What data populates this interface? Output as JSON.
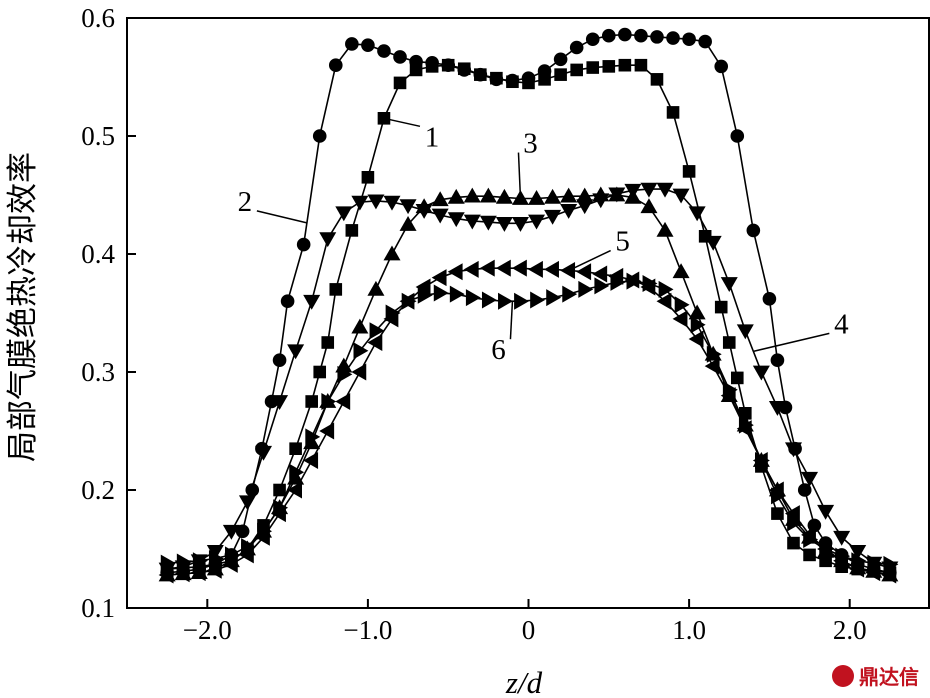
{
  "chart_data": {
    "type": "line",
    "xlabel": "z/d",
    "ylabel": "局部气膜绝热冷却效率",
    "xlim": [
      -2.5,
      2.5
    ],
    "ylim": [
      0.1,
      0.6
    ],
    "xticks": [
      -2.0,
      -1.0,
      0,
      1.0,
      2.0
    ],
    "xtick_labels": [
      "−2.0",
      "−1.0",
      "0",
      "1.0",
      "2.0"
    ],
    "yticks": [
      0.1,
      0.2,
      0.3,
      0.4,
      0.5,
      0.6
    ],
    "ytick_labels": [
      "0.1",
      "0.2",
      "0.3",
      "0.4",
      "0.5",
      "0.6"
    ],
    "grid": false,
    "series": [
      {
        "name": "1",
        "marker": "square",
        "x": [
          -2.25,
          -2.15,
          -2.05,
          -1.95,
          -1.85,
          -1.75,
          -1.65,
          -1.55,
          -1.45,
          -1.35,
          -1.3,
          -1.25,
          -1.2,
          -1.1,
          -1.0,
          -0.9,
          -0.8,
          -0.7,
          -0.6,
          -0.5,
          -0.4,
          -0.3,
          -0.2,
          -0.1,
          0.0,
          0.1,
          0.2,
          0.3,
          0.4,
          0.5,
          0.6,
          0.7,
          0.8,
          0.9,
          1.0,
          1.1,
          1.2,
          1.25,
          1.3,
          1.35,
          1.45,
          1.55,
          1.65,
          1.75,
          1.85,
          1.95,
          2.05,
          2.15,
          2.25
        ],
        "y": [
          0.133,
          0.134,
          0.135,
          0.137,
          0.14,
          0.15,
          0.17,
          0.2,
          0.235,
          0.275,
          0.3,
          0.325,
          0.37,
          0.42,
          0.465,
          0.515,
          0.545,
          0.556,
          0.559,
          0.56,
          0.557,
          0.552,
          0.549,
          0.546,
          0.545,
          0.548,
          0.552,
          0.556,
          0.558,
          0.559,
          0.56,
          0.56,
          0.548,
          0.52,
          0.47,
          0.415,
          0.355,
          0.325,
          0.295,
          0.265,
          0.22,
          0.18,
          0.155,
          0.145,
          0.14,
          0.135,
          0.133,
          0.132,
          0.13
        ]
      },
      {
        "name": "2",
        "marker": "circle",
        "x": [
          -2.25,
          -2.15,
          -2.05,
          -1.95,
          -1.85,
          -1.78,
          -1.72,
          -1.66,
          -1.6,
          -1.55,
          -1.5,
          -1.4,
          -1.3,
          -1.2,
          -1.1,
          -1.0,
          -0.9,
          -0.8,
          -0.7,
          -0.6,
          -0.5,
          -0.4,
          -0.3,
          -0.2,
          -0.1,
          0.0,
          0.1,
          0.2,
          0.3,
          0.4,
          0.5,
          0.6,
          0.7,
          0.8,
          0.9,
          1.0,
          1.1,
          1.2,
          1.3,
          1.4,
          1.5,
          1.55,
          1.6,
          1.66,
          1.72,
          1.78,
          1.85,
          1.95,
          2.05,
          2.15,
          2.25
        ],
        "y": [
          0.13,
          0.131,
          0.133,
          0.137,
          0.145,
          0.165,
          0.2,
          0.235,
          0.275,
          0.31,
          0.36,
          0.408,
          0.5,
          0.56,
          0.578,
          0.577,
          0.572,
          0.567,
          0.563,
          0.562,
          0.56,
          0.556,
          0.552,
          0.548,
          0.547,
          0.549,
          0.555,
          0.565,
          0.575,
          0.582,
          0.585,
          0.586,
          0.585,
          0.584,
          0.583,
          0.582,
          0.58,
          0.559,
          0.5,
          0.42,
          0.362,
          0.31,
          0.27,
          0.235,
          0.2,
          0.17,
          0.155,
          0.145,
          0.137,
          0.133,
          0.13
        ]
      },
      {
        "name": "3",
        "marker": "triangle-up",
        "x": [
          -2.25,
          -2.15,
          -2.05,
          -1.95,
          -1.85,
          -1.75,
          -1.65,
          -1.55,
          -1.45,
          -1.35,
          -1.25,
          -1.15,
          -1.05,
          -0.95,
          -0.85,
          -0.75,
          -0.65,
          -0.55,
          -0.45,
          -0.35,
          -0.25,
          -0.15,
          -0.05,
          0.05,
          0.15,
          0.25,
          0.35,
          0.45,
          0.55,
          0.65,
          0.75,
          0.85,
          0.95,
          1.05,
          1.15,
          1.25,
          1.35,
          1.45,
          1.55,
          1.65,
          1.75,
          1.85,
          1.95,
          2.05,
          2.15,
          2.25
        ],
        "y": [
          0.128,
          0.129,
          0.13,
          0.133,
          0.14,
          0.15,
          0.165,
          0.185,
          0.21,
          0.24,
          0.275,
          0.305,
          0.338,
          0.37,
          0.4,
          0.425,
          0.44,
          0.446,
          0.448,
          0.449,
          0.449,
          0.448,
          0.447,
          0.447,
          0.448,
          0.449,
          0.449,
          0.45,
          0.45,
          0.448,
          0.44,
          0.42,
          0.385,
          0.35,
          0.315,
          0.28,
          0.255,
          0.225,
          0.2,
          0.175,
          0.16,
          0.148,
          0.14,
          0.134,
          0.131,
          0.128
        ]
      },
      {
        "name": "4",
        "marker": "triangle-down",
        "x": [
          -2.25,
          -2.15,
          -2.05,
          -1.95,
          -1.85,
          -1.75,
          -1.65,
          -1.55,
          -1.45,
          -1.35,
          -1.25,
          -1.15,
          -1.05,
          -0.95,
          -0.85,
          -0.75,
          -0.65,
          -0.55,
          -0.45,
          -0.35,
          -0.25,
          -0.15,
          -0.05,
          0.05,
          0.15,
          0.25,
          0.35,
          0.45,
          0.55,
          0.65,
          0.75,
          0.85,
          0.95,
          1.05,
          1.15,
          1.25,
          1.35,
          1.45,
          1.55,
          1.65,
          1.75,
          1.85,
          1.95,
          2.05,
          2.15,
          2.25
        ],
        "y": [
          0.133,
          0.135,
          0.14,
          0.148,
          0.165,
          0.19,
          0.232,
          0.275,
          0.318,
          0.36,
          0.413,
          0.435,
          0.444,
          0.445,
          0.444,
          0.441,
          0.437,
          0.433,
          0.43,
          0.428,
          0.427,
          0.426,
          0.426,
          0.428,
          0.432,
          0.437,
          0.441,
          0.446,
          0.451,
          0.454,
          0.455,
          0.455,
          0.45,
          0.435,
          0.41,
          0.375,
          0.335,
          0.3,
          0.27,
          0.235,
          0.21,
          0.182,
          0.16,
          0.148,
          0.138,
          0.134
        ]
      },
      {
        "name": "5",
        "marker": "triangle-left",
        "x": [
          -2.25,
          -2.15,
          -2.05,
          -1.95,
          -1.85,
          -1.75,
          -1.65,
          -1.55,
          -1.45,
          -1.35,
          -1.25,
          -1.15,
          -1.05,
          -0.95,
          -0.85,
          -0.75,
          -0.65,
          -0.55,
          -0.45,
          -0.35,
          -0.25,
          -0.15,
          -0.05,
          0.05,
          0.15,
          0.25,
          0.35,
          0.45,
          0.55,
          0.65,
          0.75,
          0.85,
          0.95,
          1.05,
          1.15,
          1.25,
          1.35,
          1.45,
          1.55,
          1.65,
          1.75,
          1.85,
          1.95,
          2.05,
          2.15,
          2.25
        ],
        "y": [
          0.128,
          0.129,
          0.13,
          0.132,
          0.137,
          0.145,
          0.16,
          0.18,
          0.2,
          0.225,
          0.25,
          0.275,
          0.3,
          0.325,
          0.345,
          0.36,
          0.372,
          0.38,
          0.385,
          0.387,
          0.388,
          0.388,
          0.388,
          0.387,
          0.387,
          0.386,
          0.385,
          0.383,
          0.381,
          0.378,
          0.372,
          0.36,
          0.345,
          0.328,
          0.305,
          0.28,
          0.252,
          0.225,
          0.2,
          0.18,
          0.162,
          0.15,
          0.14,
          0.133,
          0.13,
          0.128
        ]
      },
      {
        "name": "6",
        "marker": "triangle-right",
        "x": [
          -2.25,
          -2.15,
          -2.05,
          -1.95,
          -1.85,
          -1.75,
          -1.65,
          -1.55,
          -1.45,
          -1.35,
          -1.25,
          -1.15,
          -1.05,
          -0.95,
          -0.85,
          -0.75,
          -0.65,
          -0.55,
          -0.45,
          -0.35,
          -0.25,
          -0.15,
          -0.05,
          0.05,
          0.15,
          0.25,
          0.35,
          0.45,
          0.55,
          0.65,
          0.75,
          0.85,
          0.95,
          1.05,
          1.15,
          1.25,
          1.35,
          1.45,
          1.55,
          1.65,
          1.75,
          1.85,
          1.95,
          2.05,
          2.15,
          2.25
        ],
        "y": [
          0.138,
          0.139,
          0.14,
          0.142,
          0.145,
          0.152,
          0.165,
          0.185,
          0.215,
          0.245,
          0.275,
          0.298,
          0.318,
          0.335,
          0.35,
          0.36,
          0.365,
          0.367,
          0.366,
          0.363,
          0.361,
          0.36,
          0.36,
          0.361,
          0.363,
          0.366,
          0.37,
          0.373,
          0.376,
          0.377,
          0.375,
          0.37,
          0.357,
          0.34,
          0.315,
          0.285,
          0.255,
          0.225,
          0.195,
          0.172,
          0.158,
          0.15,
          0.144,
          0.14,
          0.138,
          0.137
        ]
      }
    ],
    "annotations": [
      {
        "text": "1",
        "series": "1",
        "at_x": -0.9
      },
      {
        "text": "2",
        "series": "2",
        "at_x": -1.38
      },
      {
        "text": "3",
        "series": "3",
        "at_x": -0.05
      },
      {
        "text": "4",
        "series": "4",
        "at_x": 1.4
      },
      {
        "text": "5",
        "series": "5",
        "at_x": 0.25
      },
      {
        "text": "6",
        "series": "6",
        "at_x": -0.1
      }
    ]
  },
  "watermark": {
    "text": "鼎达信",
    "color": "#c1121f"
  }
}
